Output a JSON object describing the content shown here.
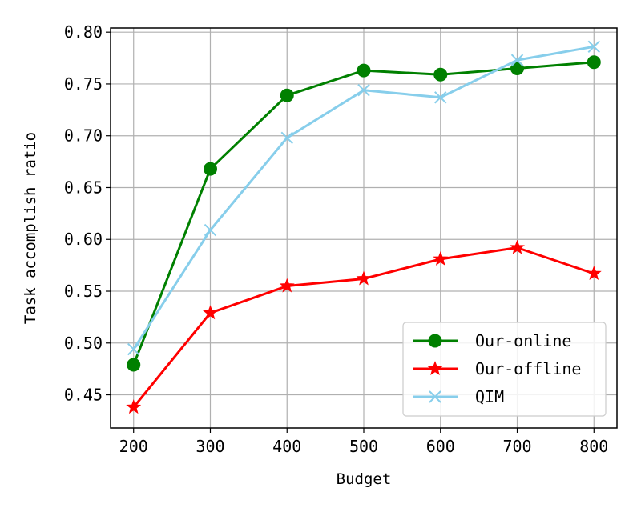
{
  "chart_data": {
    "type": "line",
    "title": "",
    "xlabel": "Budget",
    "ylabel": "Task accomplish ratio",
    "x": [
      200,
      300,
      400,
      500,
      600,
      700,
      800
    ],
    "xlim": [
      170,
      830
    ],
    "ylim": [
      0.418,
      0.804
    ],
    "xticks": [
      200,
      300,
      400,
      500,
      600,
      700,
      800
    ],
    "yticks": [
      0.45,
      0.5,
      0.55,
      0.6,
      0.65,
      0.7,
      0.75,
      0.8
    ],
    "grid": true,
    "legend_position": "lower-right",
    "series": [
      {
        "name": "Our-online",
        "color": "#008000",
        "marker": "circle",
        "values": [
          0.479,
          0.668,
          0.739,
          0.763,
          0.759,
          0.765,
          0.771
        ]
      },
      {
        "name": "Our-offline",
        "color": "#ff0000",
        "marker": "star",
        "values": [
          0.438,
          0.529,
          0.555,
          0.562,
          0.581,
          0.592,
          0.567
        ]
      },
      {
        "name": "QIM",
        "color": "#87ceeb",
        "marker": "x",
        "values": [
          0.494,
          0.609,
          0.698,
          0.744,
          0.737,
          0.773,
          0.786
        ]
      }
    ]
  }
}
